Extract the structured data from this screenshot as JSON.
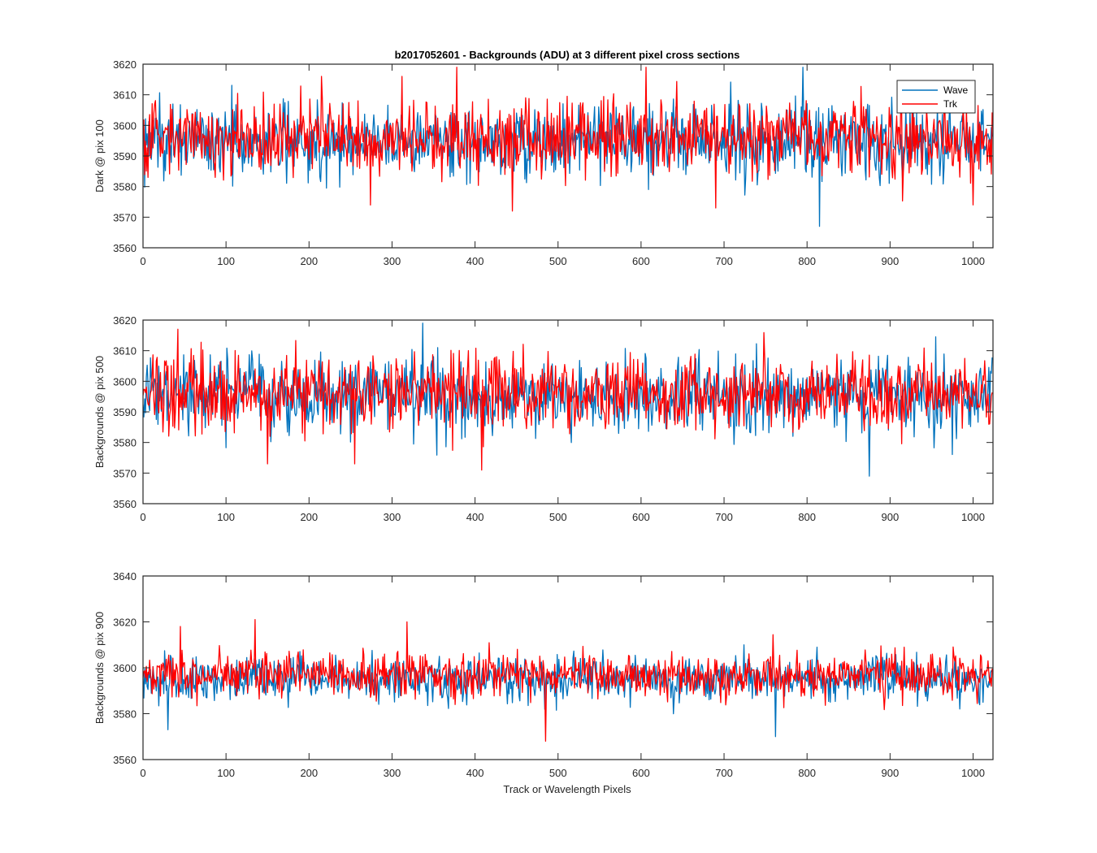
{
  "figure": {
    "title": "b2017052601 - Backgrounds (ADU) at 3 different pixel cross sections",
    "xlabel": "Track or Wavelength Pixels"
  },
  "colors": {
    "wave": "#0072BD",
    "trk": "#FF0000",
    "axis": "#262626"
  },
  "chart_data": [
    {
      "type": "line",
      "ylabel": "Dark @ pix 100",
      "xlim": [
        0,
        1024
      ],
      "ylim": [
        3560,
        3620
      ],
      "xticks": [
        0,
        100,
        200,
        300,
        400,
        500,
        600,
        700,
        800,
        900,
        1000
      ],
      "yticks": [
        3560,
        3570,
        3580,
        3590,
        3600,
        3610,
        3620
      ],
      "legend": "top-right",
      "series": [
        {
          "name": "Wave",
          "mean": 3595,
          "noise_sd": 6,
          "extremes": [
            [
              815,
              3567
            ],
            [
              795,
              3619
            ]
          ]
        },
        {
          "name": "Trk",
          "mean": 3596,
          "noise_sd": 6,
          "extremes": [
            [
              378,
              3619
            ],
            [
              606,
              3619
            ],
            [
              445,
              3572
            ],
            [
              690,
              3573
            ],
            [
              1000,
              3574
            ]
          ]
        }
      ]
    },
    {
      "type": "line",
      "ylabel": "Backgrounds @ pix 500",
      "xlim": [
        0,
        1024
      ],
      "ylim": [
        3560,
        3620
      ],
      "xticks": [
        0,
        100,
        200,
        300,
        400,
        500,
        600,
        700,
        800,
        900,
        1000
      ],
      "yticks": [
        3560,
        3570,
        3580,
        3590,
        3600,
        3610,
        3620
      ],
      "series": [
        {
          "name": "Wave",
          "mean": 3595,
          "noise_sd": 6,
          "extremes": [
            [
              337,
              3619
            ],
            [
              875,
              3569
            ]
          ]
        },
        {
          "name": "Trk",
          "mean": 3596,
          "noise_sd": 6,
          "extremes": [
            [
              150,
              3573
            ],
            [
              255,
              3573
            ],
            [
              408,
              3571
            ],
            [
              42,
              3617
            ]
          ]
        }
      ]
    },
    {
      "type": "line",
      "ylabel": "Backgrounds @ pix 900",
      "xlim": [
        0,
        1024
      ],
      "ylim": [
        3560,
        3640
      ],
      "xticks": [
        0,
        100,
        200,
        300,
        400,
        500,
        600,
        700,
        800,
        900,
        1000
      ],
      "yticks": [
        3560,
        3580,
        3600,
        3620,
        3640
      ],
      "series": [
        {
          "name": "Wave",
          "mean": 3595,
          "noise_sd": 5,
          "extremes": [
            [
              762,
              3570
            ],
            [
              30,
              3573
            ]
          ]
        },
        {
          "name": "Trk",
          "mean": 3597,
          "noise_sd": 5,
          "extremes": [
            [
              135,
              3621
            ],
            [
              318,
              3620
            ],
            [
              485,
              3568
            ],
            [
              45,
              3618
            ]
          ]
        }
      ]
    }
  ]
}
